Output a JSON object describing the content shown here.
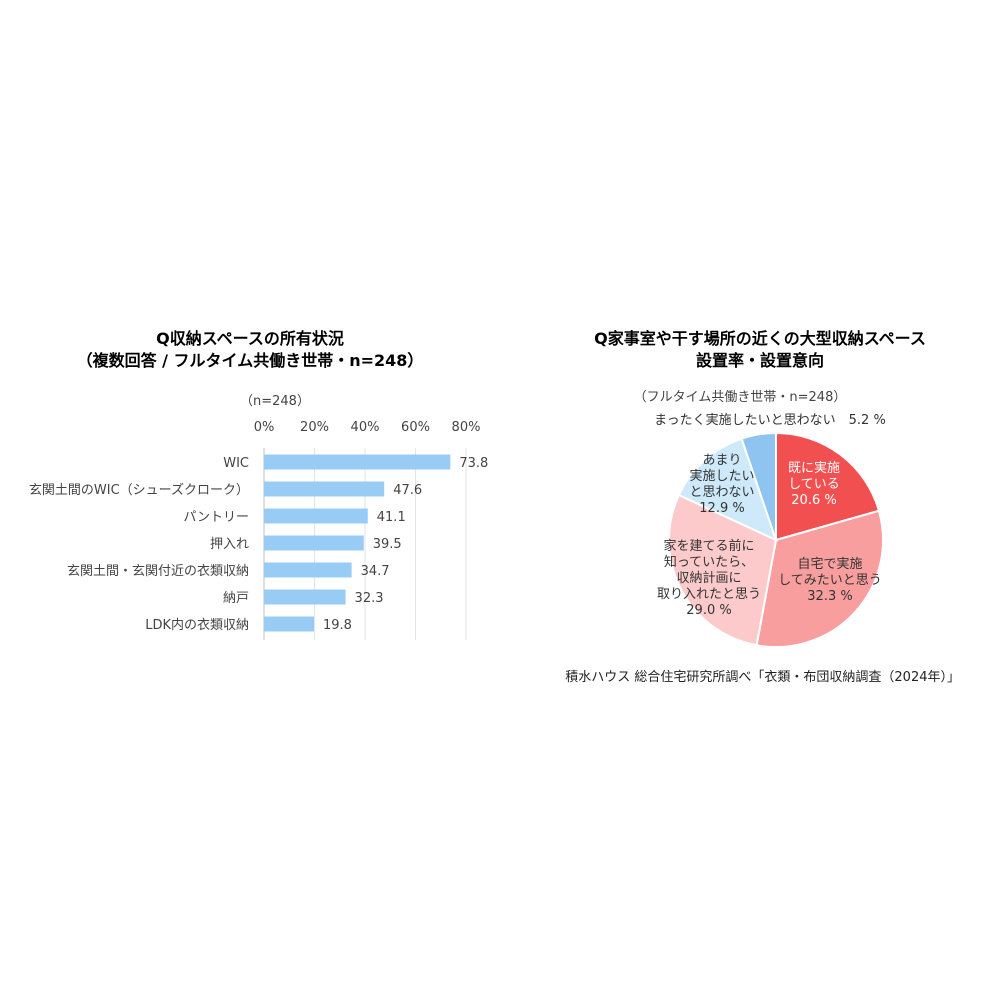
{
  "chart_data": [
    {
      "type": "bar",
      "orientation": "horizontal",
      "title_lines": [
        "Q収納スペースの所有状況",
        "（複数回答 / フルタイム共働き世帯・n=248）"
      ],
      "note": "（n=248）",
      "categories": [
        "WIC",
        "玄関土間のWIC（シューズクローク）",
        "パントリー",
        "押入れ",
        "玄関土間・玄関付近の衣類収納",
        "納戸",
        "LDK内の衣類収納"
      ],
      "values": [
        73.8,
        47.6,
        41.1,
        39.5,
        34.7,
        32.3,
        19.8
      ],
      "value_labels": [
        "73.8",
        "47.6",
        "41.1",
        "39.5",
        "34.7",
        "32.3",
        "19.8"
      ],
      "xlim": [
        0,
        80
      ],
      "x_ticks": [
        0,
        20,
        40,
        60,
        80
      ],
      "x_tick_labels": [
        "0%",
        "20%",
        "40%",
        "60%",
        "80%"
      ],
      "axis_position": "top",
      "grid": true,
      "bar_color": "#99CCF5"
    },
    {
      "type": "pie",
      "title_lines": [
        "Q家事室や干す場所の近くの大型収納スペース",
        "設置率・設置意向"
      ],
      "subtitle": "（フルタイム共働き世帯・n=248）",
      "slices": [
        {
          "label_lines": [
            "既に実施",
            "している",
            "20.6 %"
          ],
          "value": 20.6,
          "color": "#F25050",
          "text_color": "#ffffff"
        },
        {
          "label_lines": [
            "自宅で実施",
            "してみたいと思う",
            "32.3 %"
          ],
          "value": 32.3,
          "color": "#F99E9E",
          "text_color": "#333333"
        },
        {
          "label_lines": [
            "家を建てる前に",
            "知っていたら、",
            "収納計画に",
            "取り入れたと思う",
            "29.0 %"
          ],
          "value": 29.0,
          "color": "#FCCACA",
          "text_color": "#333333"
        },
        {
          "label_lines": [
            "あまり",
            "実施したい",
            "と思わない",
            "12.9 %"
          ],
          "value": 12.9,
          "color": "#CDE9FA",
          "text_color": "#333333"
        },
        {
          "label_lines": [
            "まったく実施したいと思わない　5.2 %"
          ],
          "value": 5.2,
          "color": "#8FC4F0",
          "text_color": "#333333"
        }
      ]
    }
  ],
  "source": "積水ハウス 総合住宅研究所調べ「衣類・布団収納調査（2024年）」"
}
